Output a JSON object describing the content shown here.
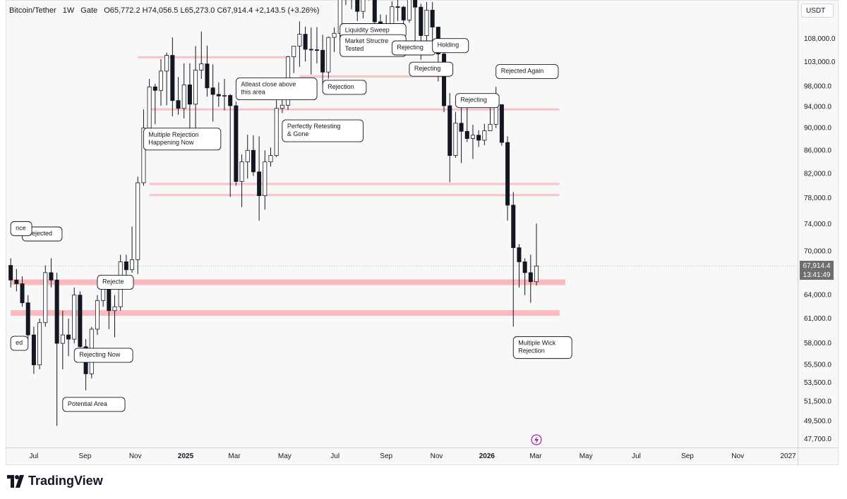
{
  "header": {
    "symbol": "Bitcoin/Tether",
    "interval": "1W",
    "exchange": "Gate",
    "ohlc": "O65,772.2 H74,056.5 L65,273.0 C67,914.4 +2,143.5 (+3.26%)"
  },
  "currency": "USDT",
  "last_price": "67,914.4",
  "countdown": "13:41:49",
  "brand": "TradingView",
  "chart_data": {
    "type": "candlestick",
    "y_axis": {
      "ticks": [
        108000,
        103000,
        98000,
        94000,
        90000,
        86000,
        82000,
        78000,
        74000,
        70000,
        67914.4,
        64000,
        61000,
        58000,
        55500,
        53500,
        51500,
        49500,
        47700
      ],
      "tick_labels": [
        "108,000.0",
        "103,000.0",
        "98,000.0",
        "94,000.0",
        "90,000.0",
        "86,000.0",
        "82,000.0",
        "78,000.0",
        "74,000.0",
        "70,000.0",
        "64,000.0",
        "61,000.0",
        "58,000.0",
        "55,500.0",
        "53,500.0",
        "51,500.0",
        "49,500.0",
        "47,700.0"
      ],
      "scale": "log"
    },
    "x_axis": {
      "labels": [
        {
          "t": "2024-07-01",
          "text": "Jul",
          "bold": false
        },
        {
          "t": "2024-09-01",
          "text": "Sep",
          "bold": false
        },
        {
          "t": "2024-11-01",
          "text": "Nov",
          "bold": false
        },
        {
          "t": "2025-01-01",
          "text": "2025",
          "bold": true
        },
        {
          "t": "2025-03-01",
          "text": "Mar",
          "bold": false
        },
        {
          "t": "2025-05-01",
          "text": "May",
          "bold": false
        },
        {
          "t": "2025-07-01",
          "text": "Jul",
          "bold": false
        },
        {
          "t": "2025-09-01",
          "text": "Sep",
          "bold": false
        },
        {
          "t": "2025-11-01",
          "text": "Nov",
          "bold": false
        },
        {
          "t": "2026-01-01",
          "text": "2026",
          "bold": true
        },
        {
          "t": "2026-03-01",
          "text": "Mar",
          "bold": false
        },
        {
          "t": "2026-05-01",
          "text": "May",
          "bold": false
        },
        {
          "t": "2026-07-01",
          "text": "Jul",
          "bold": false
        },
        {
          "t": "2026-09-01",
          "text": "Sep",
          "bold": false
        },
        {
          "t": "2026-11-01",
          "text": "Nov",
          "bold": false
        },
        {
          "t": "2027-01-01",
          "text": "2027",
          "bold": false
        }
      ]
    },
    "candles": [
      [
        "2024-06-03",
        68000,
        69000,
        65000,
        66000
      ],
      [
        "2024-06-10",
        66000,
        67500,
        64500,
        65500
      ],
      [
        "2024-06-17",
        65500,
        66500,
        62500,
        63000
      ],
      [
        "2024-06-24",
        63000,
        64000,
        58500,
        59000
      ],
      [
        "2024-07-01",
        59000,
        60000,
        54500,
        55500
      ],
      [
        "2024-07-08",
        55500,
        61000,
        55000,
        60500
      ],
      [
        "2024-07-15",
        60500,
        68000,
        60000,
        67000
      ],
      [
        "2024-07-22",
        67000,
        69000,
        65000,
        66000
      ],
      [
        "2024-07-29",
        66000,
        67000,
        49000,
        58000
      ],
      [
        "2024-08-05",
        58000,
        62000,
        55000,
        59000
      ],
      [
        "2024-08-12",
        59000,
        61000,
        56500,
        58500
      ],
      [
        "2024-08-19",
        58500,
        65000,
        58000,
        64000
      ],
      [
        "2024-08-26",
        64000,
        64500,
        57500,
        57600
      ],
      [
        "2024-09-02",
        57600,
        58500,
        52700,
        54500
      ],
      [
        "2024-09-09",
        54500,
        60000,
        54000,
        59700
      ],
      [
        "2024-09-16",
        59700,
        64000,
        59000,
        63300
      ],
      [
        "2024-09-23",
        63300,
        66500,
        62500,
        65600
      ],
      [
        "2024-09-30",
        65600,
        66000,
        59700,
        62000
      ],
      [
        "2024-10-07",
        62000,
        64000,
        58700,
        62500
      ],
      [
        "2024-10-14",
        62500,
        69500,
        62000,
        68500
      ],
      [
        "2024-10-21",
        68500,
        69500,
        65500,
        67400
      ],
      [
        "2024-10-28",
        67400,
        73600,
        67000,
        68800
      ],
      [
        "2024-11-04",
        68800,
        81500,
        66800,
        80500
      ],
      [
        "2024-11-11",
        80500,
        93500,
        80000,
        90000
      ],
      [
        "2024-11-18",
        90000,
        99500,
        89500,
        97900
      ],
      [
        "2024-11-25",
        97900,
        98500,
        90700,
        97200
      ],
      [
        "2024-12-02",
        97200,
        103600,
        94200,
        101100
      ],
      [
        "2024-12-09",
        101100,
        105000,
        94300,
        104400
      ],
      [
        "2024-12-16",
        104400,
        108300,
        92200,
        95200
      ],
      [
        "2024-12-23",
        95200,
        99900,
        92500,
        93700
      ],
      [
        "2024-12-30",
        93700,
        102700,
        91800,
        98300
      ],
      [
        "2025-01-06",
        98300,
        102700,
        89300,
        94500
      ],
      [
        "2025-01-13",
        94500,
        106400,
        89200,
        101300
      ],
      [
        "2025-01-20",
        101300,
        109600,
        99500,
        102600
      ],
      [
        "2025-01-27",
        102600,
        106500,
        96000,
        97700
      ],
      [
        "2025-02-03",
        97700,
        102500,
        91200,
        96400
      ],
      [
        "2025-02-10",
        96400,
        98800,
        94000,
        96100
      ],
      [
        "2025-02-17",
        96100,
        99500,
        93300,
        96200
      ],
      [
        "2025-02-24",
        96200,
        96500,
        78200,
        94200
      ],
      [
        "2025-03-03",
        94200,
        95000,
        80000,
        80700
      ],
      [
        "2025-03-10",
        80700,
        85300,
        76600,
        84000
      ],
      [
        "2025-03-17",
        84000,
        88800,
        81200,
        86000
      ],
      [
        "2025-03-24",
        86000,
        88700,
        81600,
        82300
      ],
      [
        "2025-03-31",
        82300,
        88500,
        74500,
        78400
      ],
      [
        "2025-04-07",
        78400,
        86000,
        76200,
        84000
      ],
      [
        "2025-04-14",
        84000,
        86500,
        83200,
        85100
      ],
      [
        "2025-04-21",
        85100,
        95800,
        84800,
        93700
      ],
      [
        "2025-04-28",
        93700,
        97900,
        92800,
        94300
      ],
      [
        "2025-05-05",
        94300,
        104300,
        93400,
        104100
      ],
      [
        "2025-05-12",
        104100,
        105800,
        100700,
        106400
      ],
      [
        "2025-05-19",
        106400,
        111900,
        102000,
        109000
      ],
      [
        "2025-05-26",
        109000,
        110700,
        103100,
        105700
      ],
      [
        "2025-06-02",
        105700,
        110500,
        100400,
        105600
      ],
      [
        "2025-06-09",
        105600,
        110600,
        102700,
        105500
      ],
      [
        "2025-06-16",
        105500,
        108900,
        98200,
        100900
      ],
      [
        "2025-06-23",
        100900,
        108500,
        99600,
        108300
      ],
      [
        "2025-06-30",
        108300,
        110500,
        105100,
        109200
      ],
      [
        "2025-07-07",
        109200,
        119400,
        107500,
        119100
      ],
      [
        "2025-07-14",
        119100,
        123200,
        115700,
        117300
      ],
      [
        "2025-07-21",
        117300,
        120200,
        114700,
        119400
      ],
      [
        "2025-07-28",
        119400,
        119800,
        112000,
        114200
      ],
      [
        "2025-08-04",
        114200,
        122300,
        112600,
        119300
      ],
      [
        "2025-08-11",
        119300,
        124500,
        116800,
        117400
      ],
      [
        "2025-08-18",
        117400,
        117600,
        110600,
        111800
      ],
      [
        "2025-08-25",
        111800,
        113500,
        107300,
        108300
      ],
      [
        "2025-09-01",
        108300,
        113400,
        107200,
        111200
      ],
      [
        "2025-09-08",
        111200,
        116600,
        110600,
        115300
      ],
      [
        "2025-09-15",
        115300,
        117900,
        112000,
        115200
      ],
      [
        "2025-09-22",
        115200,
        115500,
        108600,
        112200
      ],
      [
        "2025-09-29",
        112200,
        125700,
        111600,
        123500
      ],
      [
        "2025-10-06",
        123500,
        126200,
        104800,
        115200
      ],
      [
        "2025-10-13",
        115200,
        116000,
        103500,
        108700
      ],
      [
        "2025-10-20",
        108700,
        116400,
        106700,
        114500
      ],
      [
        "2025-10-27",
        114500,
        116400,
        106300,
        110600
      ],
      [
        "2025-11-03",
        110600,
        110700,
        99000,
        104700
      ],
      [
        "2025-11-10",
        104700,
        107500,
        93000,
        94200
      ],
      [
        "2025-11-17",
        94200,
        96700,
        80600,
        85100
      ],
      [
        "2025-11-24",
        85100,
        93000,
        84700,
        90900
      ],
      [
        "2025-12-01",
        90900,
        94100,
        83800,
        89400
      ],
      [
        "2025-12-08",
        89400,
        94600,
        87500,
        88100
      ],
      [
        "2025-12-15",
        88100,
        90600,
        84500,
        88700
      ],
      [
        "2025-12-22",
        88700,
        89600,
        86600,
        87800
      ],
      [
        "2025-12-29",
        87800,
        90800,
        86900,
        89500
      ],
      [
        "2026-01-05",
        89500,
        94700,
        89800,
        90700
      ],
      [
        "2026-01-12",
        90700,
        97900,
        90000,
        94400
      ],
      [
        "2026-01-19",
        94400,
        94500,
        86800,
        87400
      ],
      [
        "2026-01-26",
        87400,
        88500,
        74500,
        76900
      ],
      [
        "2026-02-02",
        76900,
        79000,
        60000,
        70500
      ],
      [
        "2026-02-09",
        70500,
        71000,
        65000,
        68500
      ],
      [
        "2026-02-16",
        68500,
        69000,
        64000,
        67000
      ],
      [
        "2026-02-23",
        67000,
        69500,
        63000,
        65771
      ],
      [
        "2026-03-02",
        65772.2,
        74056.5,
        65273.0,
        67914.4
      ]
    ],
    "levels": [
      {
        "from": "2024-11-04",
        "to": "2025-05-05",
        "price": 104000,
        "color": "#f7b2b7"
      },
      {
        "from": "2025-05-19",
        "to": "2025-11-17",
        "price": 100000,
        "color": "#f7b2b7"
      },
      {
        "from": "2024-11-18",
        "to": "2026-03-30",
        "price": 93500,
        "color": "#f7b2b7"
      },
      {
        "from": "2024-11-18",
        "to": "2026-03-30",
        "price": 80300,
        "color": "#f7b2b7"
      },
      {
        "from": "2024-11-18",
        "to": "2026-03-30",
        "price": 78500,
        "color": "#f7b2b7"
      },
      {
        "from": "2024-06-03",
        "to": "2026-04-06",
        "price": 65700,
        "color": "#f7b2b7",
        "thick": true
      },
      {
        "from": "2024-06-03",
        "to": "2026-03-30",
        "price": 61700,
        "color": "#f7b2b7",
        "thick": true
      }
    ],
    "annotations": [
      {
        "t": "2024-11-11",
        "price": 88000,
        "text": "Multiple Rejection Happening Now"
      },
      {
        "t": "2025-03-03",
        "price": 97500,
        "text": "Atleast close above this area"
      },
      {
        "t": "2025-04-28",
        "price": 89500,
        "text": "Perfectly Retesting & Gone"
      },
      {
        "t": "2025-06-16",
        "price": 97800,
        "text": "Rejection"
      },
      {
        "t": "2025-07-07",
        "price": 109800,
        "text": "Liquidity Sweep"
      },
      {
        "t": "2025-07-07",
        "price": 106500,
        "text": "Market Structre Tested"
      },
      {
        "t": "2025-09-08",
        "price": 106000,
        "text": "Rejecting"
      },
      {
        "t": "2025-09-29",
        "price": 101500,
        "text": "Rejecting"
      },
      {
        "t": "2025-10-27",
        "price": 106500,
        "text": "Holding"
      },
      {
        "t": "2025-11-24",
        "price": 95200,
        "text": "Rejecting"
      },
      {
        "t": "2026-01-12",
        "price": 101000,
        "text": "Rejected Again"
      },
      {
        "t": "2026-02-02",
        "price": 57500,
        "text": "Multiple Wick Rejection"
      },
      {
        "t": "2024-08-19",
        "price": 56600,
        "text": "Rejecting Now"
      },
      {
        "t": "2024-08-05",
        "price": 51200,
        "text": "Potential Area"
      },
      {
        "t": "2024-09-16",
        "price": 65700,
        "text": "Rejecte"
      },
      {
        "t": "2024-06-17",
        "price": 72500,
        "text": "Rejected"
      },
      {
        "t": "2024-06-03",
        "price": 73300,
        "text": "nce"
      },
      {
        "t": "2024-06-03",
        "price": 58000,
        "text": "ed"
      }
    ]
  }
}
